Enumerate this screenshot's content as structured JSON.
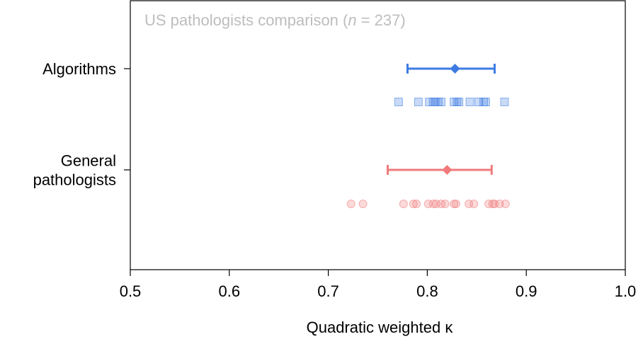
{
  "chart_data": {
    "type": "scatter",
    "title": "US pathologists comparison (n = 237)",
    "title_parts": {
      "prefix": "US pathologists comparison (",
      "italic": "n",
      "suffix": " = 237)"
    },
    "xlabel": "Quadratic weighted κ",
    "xlim": [
      0.5,
      1.0
    ],
    "xticks": [
      "0.5",
      "0.6",
      "0.7",
      "0.8",
      "0.9",
      "1.0"
    ],
    "grid": false,
    "legend": "none",
    "groups": [
      {
        "label_lines": [
          "Algorithms"
        ],
        "color": "#3d7be3",
        "marker": "square",
        "summary": {
          "mean": 0.828,
          "ci_low": 0.78,
          "ci_high": 0.868,
          "marker": "diamond"
        },
        "points": [
          0.771,
          0.791,
          0.802,
          0.806,
          0.808,
          0.811,
          0.814,
          0.827,
          0.83,
          0.832,
          0.843,
          0.852,
          0.857,
          0.859,
          0.878
        ]
      },
      {
        "label_lines": [
          "General",
          "pathologists"
        ],
        "color": "#f07a7a",
        "marker": "circle",
        "summary": {
          "mean": 0.82,
          "ci_low": 0.76,
          "ci_high": 0.865,
          "marker": "diamond"
        },
        "points": [
          0.723,
          0.735,
          0.776,
          0.786,
          0.789,
          0.801,
          0.806,
          0.809,
          0.814,
          0.818,
          0.827,
          0.829,
          0.842,
          0.847,
          0.862,
          0.866,
          0.868,
          0.873,
          0.879
        ]
      }
    ]
  }
}
